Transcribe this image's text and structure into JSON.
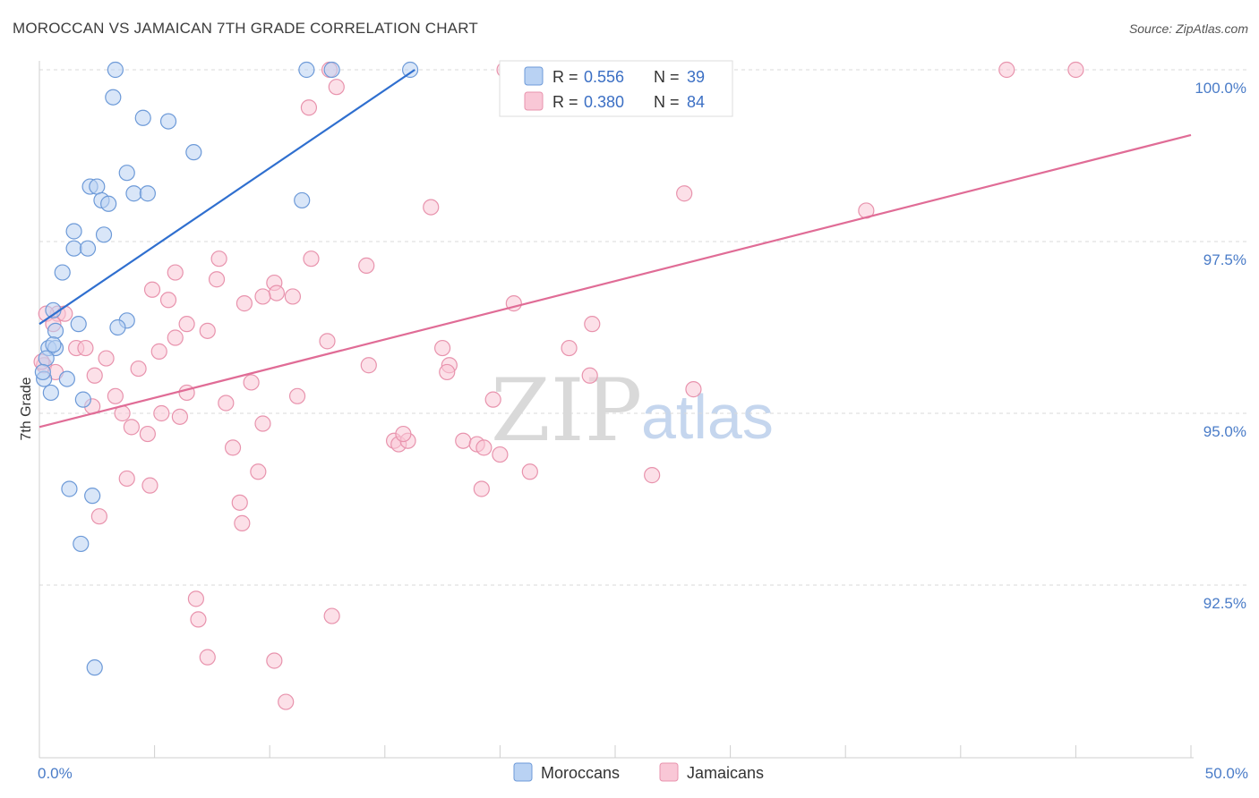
{
  "title": "MOROCCAN VS JAMAICAN 7TH GRADE CORRELATION CHART",
  "source": "Source: ZipAtlas.com",
  "watermark": {
    "zip": "ZIP",
    "atlas": "atlas"
  },
  "legend": {
    "r_label": "R =",
    "n_label": "N =",
    "entries": [
      {
        "r": "0.556",
        "n": "39",
        "color": "#a9c8f0"
      },
      {
        "r": "0.380",
        "n": "84",
        "color": "#f7b8cc"
      }
    ]
  },
  "bottom_legend": [
    "Moroccans",
    "Jamaicans"
  ],
  "colors": {
    "moroccan_fill": "#b9d2f3",
    "moroccan_stroke": "#6d9ad8",
    "moroccan_line": "#2f6fcf",
    "jamaican_fill": "#f9c7d6",
    "jamaican_stroke": "#e893ad",
    "jamaican_line": "#e06c96",
    "grid": "#d9d9d9",
    "tick_text": "#4a7cc8"
  },
  "chart_data": {
    "type": "scatter",
    "title": "MOROCCAN VS JAMAICAN 7TH GRADE CORRELATION CHART",
    "xlabel": "",
    "ylabel": "7th Grade",
    "xlim": [
      0,
      50
    ],
    "ylim": [
      90.0,
      100.3
    ],
    "x_tick_labels": [
      {
        "value": 0,
        "label": "0.0%"
      },
      {
        "value": 50,
        "label": "50.0%"
      }
    ],
    "y_tick_labels": [
      {
        "value": 100.0,
        "label": "100.0%"
      },
      {
        "value": 97.5,
        "label": "97.5%"
      },
      {
        "value": 95.0,
        "label": "95.0%"
      },
      {
        "value": 92.5,
        "label": "92.5%"
      }
    ],
    "grid": true,
    "series": [
      {
        "name": "Moroccans",
        "r": 0.556,
        "n": 39,
        "trend": {
          "x": [
            0.0,
            16.3
          ],
          "y": [
            96.3,
            100.0
          ]
        },
        "points": [
          [
            3.3,
            100.0
          ],
          [
            11.6,
            100.0
          ],
          [
            12.7,
            100.0
          ],
          [
            16.1,
            100.0
          ],
          [
            3.2,
            99.6
          ],
          [
            4.5,
            99.3
          ],
          [
            5.6,
            99.25
          ],
          [
            6.7,
            98.8
          ],
          [
            3.8,
            98.5
          ],
          [
            2.2,
            98.3
          ],
          [
            2.5,
            98.3
          ],
          [
            4.1,
            98.2
          ],
          [
            4.7,
            98.2
          ],
          [
            2.7,
            98.1
          ],
          [
            3.0,
            98.05
          ],
          [
            11.4,
            98.1
          ],
          [
            1.5,
            97.65
          ],
          [
            2.8,
            97.6
          ],
          [
            1.5,
            97.4
          ],
          [
            2.1,
            97.4
          ],
          [
            1.0,
            97.05
          ],
          [
            0.6,
            96.5
          ],
          [
            1.7,
            96.3
          ],
          [
            3.8,
            96.35
          ],
          [
            0.7,
            96.2
          ],
          [
            3.4,
            96.25
          ],
          [
            0.4,
            95.95
          ],
          [
            0.7,
            95.95
          ],
          [
            0.3,
            95.8
          ],
          [
            0.2,
            95.5
          ],
          [
            0.5,
            95.3
          ],
          [
            1.2,
            95.5
          ],
          [
            1.9,
            95.2
          ],
          [
            1.3,
            93.9
          ],
          [
            2.3,
            93.8
          ],
          [
            1.8,
            93.1
          ],
          [
            2.4,
            91.3
          ],
          [
            0.15,
            95.6
          ],
          [
            0.6,
            96.0
          ]
        ]
      },
      {
        "name": "Jamaicans",
        "r": 0.38,
        "n": 84,
        "trend": {
          "x": [
            0.0,
            50.0
          ],
          "y": [
            94.8,
            99.05
          ]
        },
        "points": [
          [
            12.6,
            100.0
          ],
          [
            20.2,
            100.0
          ],
          [
            42.0,
            100.0
          ],
          [
            45.0,
            100.0
          ],
          [
            12.9,
            99.75
          ],
          [
            11.7,
            99.45
          ],
          [
            28.0,
            98.2
          ],
          [
            17.0,
            98.0
          ],
          [
            35.9,
            97.95
          ],
          [
            7.8,
            97.25
          ],
          [
            11.8,
            97.25
          ],
          [
            14.2,
            97.15
          ],
          [
            5.9,
            97.05
          ],
          [
            7.7,
            96.95
          ],
          [
            10.2,
            96.9
          ],
          [
            10.3,
            96.75
          ],
          [
            11.0,
            96.7
          ],
          [
            4.9,
            96.8
          ],
          [
            5.6,
            96.65
          ],
          [
            8.9,
            96.6
          ],
          [
            9.7,
            96.7
          ],
          [
            20.6,
            96.6
          ],
          [
            6.4,
            96.3
          ],
          [
            0.8,
            96.45
          ],
          [
            1.1,
            96.45
          ],
          [
            7.3,
            96.2
          ],
          [
            24.0,
            96.3
          ],
          [
            12.5,
            96.05
          ],
          [
            1.6,
            95.95
          ],
          [
            2.0,
            95.95
          ],
          [
            17.5,
            95.95
          ],
          [
            23.0,
            95.95
          ],
          [
            5.2,
            95.9
          ],
          [
            2.9,
            95.8
          ],
          [
            0.2,
            95.7
          ],
          [
            0.7,
            95.6
          ],
          [
            17.8,
            95.7
          ],
          [
            14.3,
            95.7
          ],
          [
            17.7,
            95.6
          ],
          [
            4.3,
            95.65
          ],
          [
            2.4,
            95.55
          ],
          [
            23.9,
            95.55
          ],
          [
            9.2,
            95.45
          ],
          [
            6.4,
            95.3
          ],
          [
            3.3,
            95.25
          ],
          [
            11.2,
            95.25
          ],
          [
            19.7,
            95.2
          ],
          [
            8.1,
            95.15
          ],
          [
            3.6,
            95.0
          ],
          [
            2.3,
            95.1
          ],
          [
            5.3,
            95.0
          ],
          [
            6.1,
            94.95
          ],
          [
            9.7,
            94.85
          ],
          [
            4.0,
            94.8
          ],
          [
            4.7,
            94.7
          ],
          [
            15.4,
            94.6
          ],
          [
            15.6,
            94.55
          ],
          [
            16.0,
            94.6
          ],
          [
            18.4,
            94.6
          ],
          [
            19.0,
            94.55
          ],
          [
            19.3,
            94.5
          ],
          [
            20.0,
            94.4
          ],
          [
            8.4,
            94.5
          ],
          [
            9.5,
            94.15
          ],
          [
            21.3,
            94.15
          ],
          [
            26.6,
            94.1
          ],
          [
            4.8,
            93.95
          ],
          [
            3.8,
            94.05
          ],
          [
            19.2,
            93.9
          ],
          [
            8.7,
            93.7
          ],
          [
            8.8,
            93.4
          ],
          [
            2.6,
            93.5
          ],
          [
            6.8,
            92.3
          ],
          [
            6.9,
            92.0
          ],
          [
            12.7,
            92.05
          ],
          [
            7.3,
            91.45
          ],
          [
            10.2,
            91.4
          ],
          [
            10.7,
            90.8
          ],
          [
            0.3,
            96.45
          ],
          [
            0.1,
            95.75
          ],
          [
            0.6,
            96.3
          ],
          [
            5.9,
            96.1
          ],
          [
            15.8,
            94.7
          ],
          [
            28.4,
            95.35
          ]
        ]
      }
    ]
  }
}
